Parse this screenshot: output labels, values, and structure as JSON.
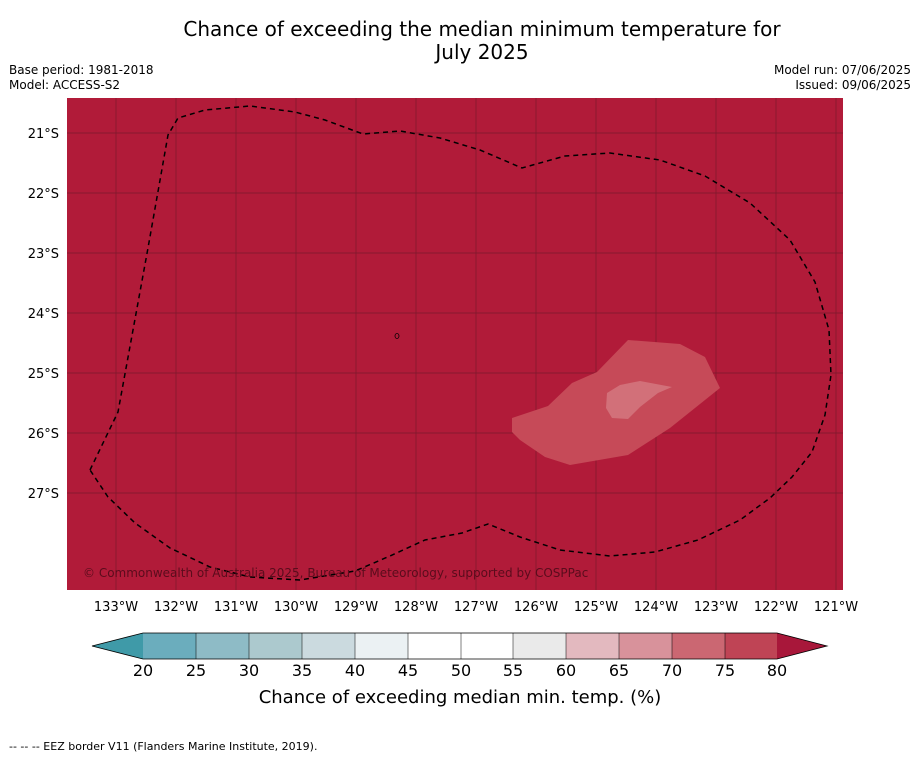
{
  "title_line1": "Chance of exceeding the median minimum temperature for",
  "title_line2": "July 2025",
  "base_period": "Base period: 1981-2018",
  "model": "Model: ACCESS-S2",
  "model_run": "Model run: 07/06/2025",
  "issued": "Issued: 09/06/2025",
  "latitude_labels": [
    "21°S",
    "22°S",
    "23°S",
    "24°S",
    "25°S",
    "26°S",
    "27°S"
  ],
  "longitude_labels": [
    "133°W",
    "132°W",
    "131°W",
    "130°W",
    "129°W",
    "128°W",
    "127°W",
    "126°W",
    "125°W",
    "124°W",
    "123°W",
    "122°W",
    "121°W"
  ],
  "copyright": "© Commonwealth of Australia 2025, Bureau of Meteorology, supported by COSPPac",
  "colorbar": {
    "ticks": [
      "20",
      "25",
      "30",
      "35",
      "40",
      "45",
      "50",
      "55",
      "60",
      "65",
      "70",
      "75",
      "80"
    ],
    "label": "Chance of exceeding median min. temp. (%)",
    "under_color": "#3f9aa8",
    "over_color": "#a8173a",
    "colors": [
      "#6badbd",
      "#8ebbc6",
      "#acc9ce",
      "#cbdadf",
      "#ebf1f3",
      "#ffffff",
      "#ffffff",
      "#eaeaea",
      "#e3b9bf",
      "#d8929b",
      "#cb6772",
      "#bf4455"
    ]
  },
  "map_colors": {
    "background": "#b11b39",
    "region_70_75": "#c64a58",
    "region_65_70": "#d27079"
  },
  "footer": "--  --  -- EEZ border V11 (Flanders Marine Institute, 2019)."
}
